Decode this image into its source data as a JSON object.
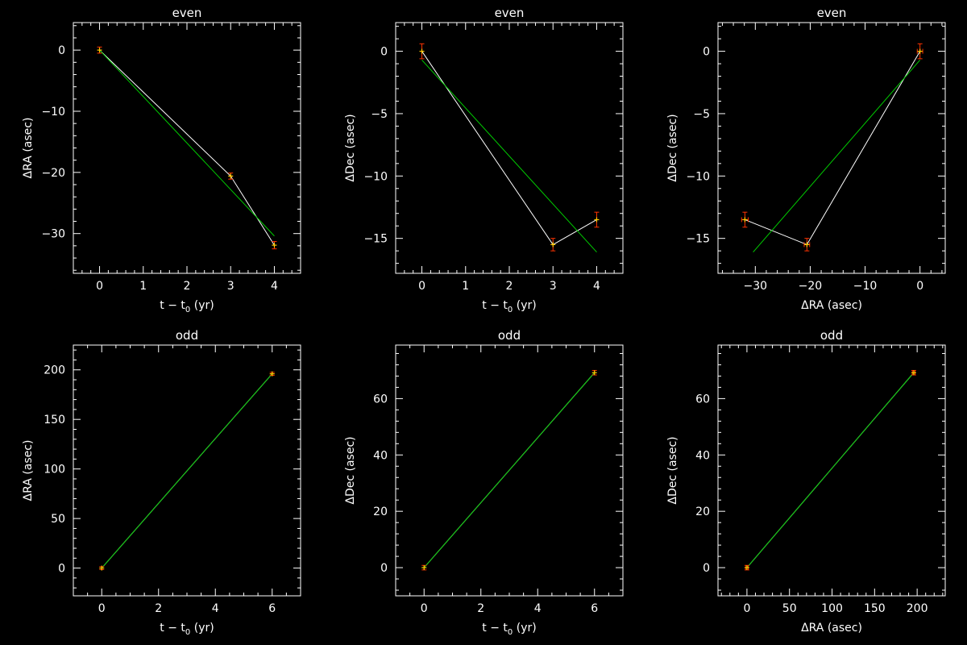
{
  "chart_data": [
    {
      "type": "scatter",
      "title": "even",
      "xlabel": "t − t0 (yr)",
      "ylabel": "ΔRA (asec)",
      "xlim": [
        -0.6,
        4.6
      ],
      "ylim": [
        -36.5,
        4.5
      ],
      "xticks": [
        0,
        1,
        2,
        3,
        4
      ],
      "yticks": [
        0,
        -10,
        -20,
        -30
      ],
      "xminor": 5,
      "yminor": 5,
      "points": [
        {
          "x": 0,
          "y": 0,
          "err": 0.5
        },
        {
          "x": 3,
          "y": -20.6,
          "err": 0.5
        },
        {
          "x": 4,
          "y": -31.9,
          "err": 0.6
        }
      ],
      "fit": [
        [
          0,
          0
        ],
        [
          4,
          -30.4
        ]
      ]
    },
    {
      "type": "scatter",
      "title": "even",
      "xlabel": "t − t0 (yr)",
      "ylabel": "ΔDec (asec)",
      "xlim": [
        -0.6,
        4.6
      ],
      "ylim": [
        -17.8,
        2.3
      ],
      "xticks": [
        0,
        1,
        2,
        3,
        4
      ],
      "yticks": [
        0,
        -5,
        -10,
        -15
      ],
      "xminor": 5,
      "yminor": 5,
      "points": [
        {
          "x": 0,
          "y": 0,
          "err": 0.6
        },
        {
          "x": 3,
          "y": -15.5,
          "err": 0.5
        },
        {
          "x": 4,
          "y": -13.5,
          "err": 0.6
        }
      ],
      "fit": [
        [
          0,
          -0.7
        ],
        [
          4,
          -16.1
        ]
      ]
    },
    {
      "type": "scatter",
      "title": "even",
      "xlabel": "ΔRA (asec)",
      "ylabel": "ΔDec (asec)",
      "xlim": [
        -36.8,
        4.6
      ],
      "ylim": [
        -17.8,
        2.3
      ],
      "xticks": [
        -30,
        -20,
        -10,
        0
      ],
      "yticks": [
        0,
        -5,
        -10,
        -15
      ],
      "xminor": 5,
      "yminor": 5,
      "points": [
        {
          "x": 0,
          "y": 0,
          "err": 0.6,
          "xerr": 0.5
        },
        {
          "x": -20.6,
          "y": -15.5,
          "err": 0.5,
          "xerr": 0.5
        },
        {
          "x": -31.9,
          "y": -13.5,
          "err": 0.6,
          "xerr": 0.6
        }
      ],
      "fit": [
        [
          0,
          -0.7
        ],
        [
          -30.4,
          -16.1
        ]
      ]
    },
    {
      "type": "scatter",
      "title": "odd",
      "xlabel": "t − t0 (yr)",
      "ylabel": "ΔRA (asec)",
      "xlim": [
        -1,
        7
      ],
      "ylim": [
        -28,
        225
      ],
      "xticks": [
        0,
        2,
        4,
        6
      ],
      "yticks": [
        0,
        50,
        100,
        150,
        200
      ],
      "xminor": 4,
      "yminor": 5,
      "points": [
        {
          "x": 0,
          "y": 0,
          "err": 1.5
        },
        {
          "x": 6,
          "y": 196,
          "err": 1.5
        }
      ],
      "fit": [
        [
          0,
          0
        ],
        [
          6,
          196
        ]
      ]
    },
    {
      "type": "scatter",
      "title": "odd",
      "xlabel": "t − t0 (yr)",
      "ylabel": "ΔDec (asec)",
      "xlim": [
        -1,
        7
      ],
      "ylim": [
        -10,
        79
      ],
      "xticks": [
        0,
        2,
        4,
        6
      ],
      "yticks": [
        0,
        20,
        40,
        60
      ],
      "xminor": 4,
      "yminor": 5,
      "points": [
        {
          "x": 0,
          "y": 0,
          "err": 0.8
        },
        {
          "x": 6,
          "y": 69.2,
          "err": 0.8
        }
      ],
      "fit": [
        [
          0,
          0
        ],
        [
          6,
          69.2
        ]
      ]
    },
    {
      "type": "scatter",
      "title": "odd",
      "xlabel": "ΔRA (asec)",
      "ylabel": "ΔDec (asec)",
      "xlim": [
        -34,
        233
      ],
      "ylim": [
        -10,
        79
      ],
      "xticks": [
        0,
        50,
        100,
        150,
        200
      ],
      "yticks": [
        0,
        20,
        40,
        60
      ],
      "xminor": 5,
      "yminor": 5,
      "points": [
        {
          "x": 0,
          "y": 0,
          "err": 0.8,
          "xerr": 1.5
        },
        {
          "x": 196,
          "y": 69.2,
          "err": 0.8,
          "xerr": 1.5
        }
      ],
      "fit": [
        [
          0,
          0
        ],
        [
          196,
          69.2
        ]
      ]
    }
  ]
}
